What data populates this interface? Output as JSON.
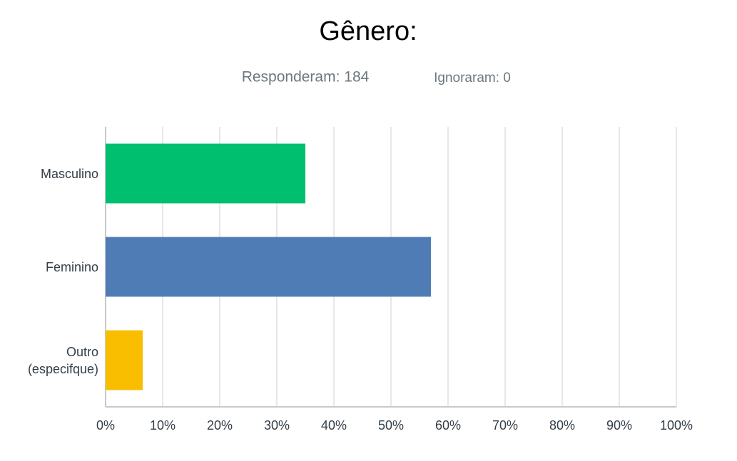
{
  "chart_data": {
    "type": "bar",
    "orientation": "horizontal",
    "title": "Gênero:",
    "subtitles": [
      "Responderam: 184",
      "Ignoraram: 0"
    ],
    "categories": [
      "Masculino",
      "Feminino",
      "Outro (especifque)"
    ],
    "values": [
      35,
      57,
      6.5
    ],
    "colors": [
      "#00bf6f",
      "#507cb6",
      "#f9be00"
    ],
    "xlim": [
      0,
      100
    ],
    "xticks": [
      {
        "value": 0,
        "label": "0%"
      },
      {
        "value": 10,
        "label": "10%"
      },
      {
        "value": 20,
        "label": "20%"
      },
      {
        "value": 30,
        "label": "30%"
      },
      {
        "value": 40,
        "label": "40%"
      },
      {
        "value": 50,
        "label": "50%"
      },
      {
        "value": 60,
        "label": "60%"
      },
      {
        "value": 70,
        "label": "70%"
      },
      {
        "value": 80,
        "label": "80%"
      },
      {
        "value": 90,
        "label": "90%"
      },
      {
        "value": 100,
        "label": "100%"
      }
    ],
    "grid": true
  }
}
